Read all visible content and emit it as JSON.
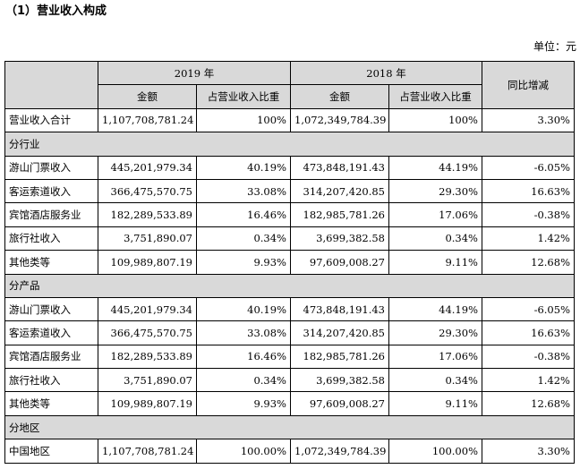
{
  "title": "（1）营业收入构成",
  "unit": "单位：元",
  "header": {
    "year_2019": "2019 年",
    "year_2018": "2018 年",
    "amount": "金额",
    "ratio": "占营业收入比重",
    "yoy": "同比增减"
  },
  "total": {
    "label": "营业收入合计",
    "a2019": "1,107,708,781.24",
    "r2019": "100%",
    "a2018": "1,072,349,784.39",
    "r2018": "100%",
    "yoy": "3.30%"
  },
  "sections": [
    {
      "label": "分行业",
      "rows": [
        {
          "label": "游山门票收入",
          "a2019": "445,201,979.34",
          "r2019": "40.19%",
          "a2018": "473,848,191.43",
          "r2018": "44.19%",
          "yoy": "-6.05%"
        },
        {
          "label": "客运索道收入",
          "a2019": "366,475,570.75",
          "r2019": "33.08%",
          "a2018": "314,207,420.85",
          "r2018": "29.30%",
          "yoy": "16.63%"
        },
        {
          "label": "宾馆酒店服务业",
          "a2019": "182,289,533.89",
          "r2019": "16.46%",
          "a2018": "182,985,781.26",
          "r2018": "17.06%",
          "yoy": "-0.38%"
        },
        {
          "label": "旅行社收入",
          "a2019": "3,751,890.07",
          "r2019": "0.34%",
          "a2018": "3,699,382.58",
          "r2018": "0.34%",
          "yoy": "1.42%"
        },
        {
          "label": "其他类等",
          "a2019": "109,989,807.19",
          "r2019": "9.93%",
          "a2018": "97,609,008.27",
          "r2018": "9.11%",
          "yoy": "12.68%"
        }
      ]
    },
    {
      "label": "分产品",
      "rows": [
        {
          "label": "游山门票收入",
          "a2019": "445,201,979.34",
          "r2019": "40.19%",
          "a2018": "473,848,191.43",
          "r2018": "44.19%",
          "yoy": "-6.05%"
        },
        {
          "label": "客运索道收入",
          "a2019": "366,475,570.75",
          "r2019": "33.08%",
          "a2018": "314,207,420.85",
          "r2018": "29.30%",
          "yoy": "16.63%"
        },
        {
          "label": "宾馆酒店服务业",
          "a2019": "182,289,533.89",
          "r2019": "16.46%",
          "a2018": "182,985,781.26",
          "r2018": "17.06%",
          "yoy": "-0.38%"
        },
        {
          "label": "旅行社收入",
          "a2019": "3,751,890.07",
          "r2019": "0.34%",
          "a2018": "3,699,382.58",
          "r2018": "0.34%",
          "yoy": "1.42%"
        },
        {
          "label": "其他类等",
          "a2019": "109,989,807.19",
          "r2019": "9.93%",
          "a2018": "97,609,008.27",
          "r2018": "9.11%",
          "yoy": "12.68%"
        }
      ]
    },
    {
      "label": "分地区",
      "rows": [
        {
          "label": "中国地区",
          "a2019": "1,107,708,781.24",
          "r2019": "100.00%",
          "a2018": "1,072,349,784.39",
          "r2018": "100.00%",
          "yoy": "3.30%"
        }
      ]
    }
  ]
}
